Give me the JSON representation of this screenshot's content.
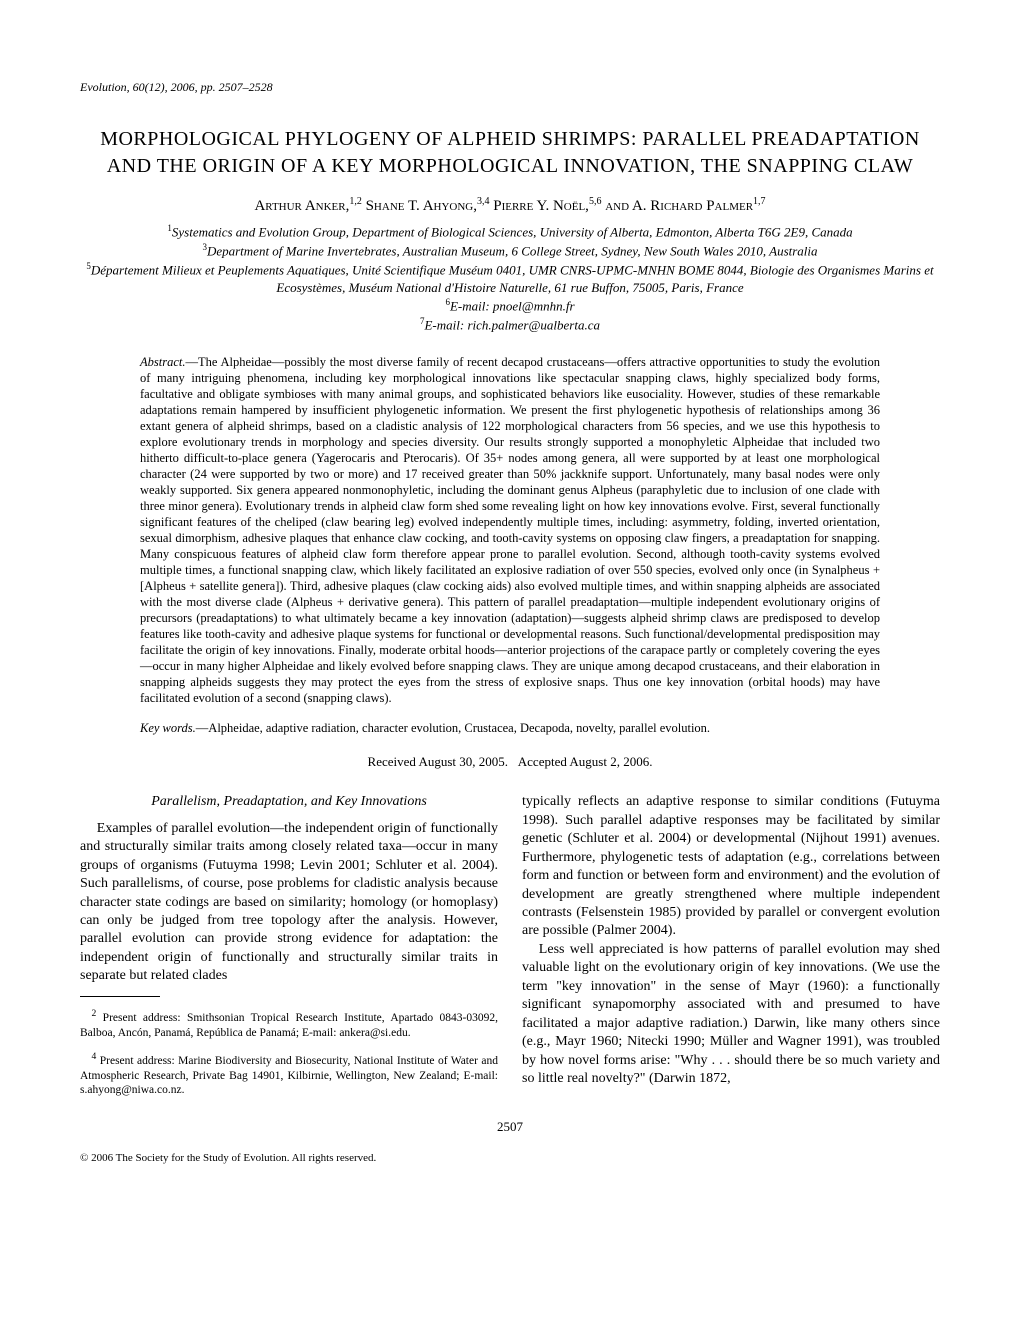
{
  "journal_header": "Evolution, 60(12), 2006, pp. 2507–2528",
  "title": "MORPHOLOGICAL PHYLOGENY OF ALPHEID SHRIMPS: PARALLEL PREADAPTATION AND THE ORIGIN OF A KEY MORPHOLOGICAL INNOVATION, THE SNAPPING CLAW",
  "authors_html": "Arthur Anker,<sup>1,2</sup> Shane T. Ahyong,<sup>3,4</sup> Pierre Y. Noël,<sup>5,6</sup> and A. Richard Palmer<sup>1,7</sup>",
  "affiliations": [
    {
      "sup": "1",
      "text": "Systematics and Evolution Group, Department of Biological Sciences, University of Alberta, Edmonton, Alberta T6G 2E9, Canada"
    },
    {
      "sup": "3",
      "text": "Department of Marine Invertebrates, Australian Museum, 6 College Street, Sydney, New South Wales 2010, Australia"
    },
    {
      "sup": "5",
      "text": "Département Milieux et Peuplements Aquatiques, Unité Scientifique Muséum 0401, UMR CNRS-UPMC-MNHN BOME 8044, Biologie des Organismes Marins et Ecosystèmes, Muséum National d'Histoire Naturelle, 61 rue Buffon, 75005, Paris, France"
    },
    {
      "sup": "6",
      "text": "E-mail: pnoel@mnhn.fr"
    },
    {
      "sup": "7",
      "text": "E-mail: rich.palmer@ualberta.ca"
    }
  ],
  "abstract_label": "Abstract.",
  "abstract": "—The Alpheidae—possibly the most diverse family of recent decapod crustaceans—offers attractive opportunities to study the evolution of many intriguing phenomena, including key morphological innovations like spectacular snapping claws, highly specialized body forms, facultative and obligate symbioses with many animal groups, and sophisticated behaviors like eusociality. However, studies of these remarkable adaptations remain hampered by insufficient phylogenetic information. We present the first phylogenetic hypothesis of relationships among 36 extant genera of alpheid shrimps, based on a cladistic analysis of 122 morphological characters from 56 species, and we use this hypothesis to explore evolutionary trends in morphology and species diversity. Our results strongly supported a monophyletic Alpheidae that included two hitherto difficult-to-place genera (Yagerocaris and Pterocaris). Of 35+ nodes among genera, all were supported by at least one morphological character (24 were supported by two or more) and 17 received greater than 50% jackknife support. Unfortunately, many basal nodes were only weakly supported. Six genera appeared nonmonophyletic, including the dominant genus Alpheus (paraphyletic due to inclusion of one clade with three minor genera). Evolutionary trends in alpheid claw form shed some revealing light on how key innovations evolve. First, several functionally significant features of the cheliped (claw bearing leg) evolved independently multiple times, including: asymmetry, folding, inverted orientation, sexual dimorphism, adhesive plaques that enhance claw cocking, and tooth-cavity systems on opposing claw fingers, a preadaptation for snapping. Many conspicuous features of alpheid claw form therefore appear prone to parallel evolution. Second, although tooth-cavity systems evolved multiple times, a functional snapping claw, which likely facilitated an explosive radiation of over 550 species, evolved only once (in Synalpheus + [Alpheus + satellite genera]). Third, adhesive plaques (claw cocking aids) also evolved multiple times, and within snapping alpheids are associated with the most diverse clade (Alpheus + derivative genera). This pattern of parallel preadaptation—multiple independent evolutionary origins of precursors (preadaptations) to what ultimately became a key innovation (adaptation)—suggests alpheid shrimp claws are predisposed to develop features like tooth-cavity and adhesive plaque systems for functional or developmental reasons. Such functional/developmental predisposition may facilitate the origin of key innovations. Finally, moderate orbital hoods—anterior projections of the carapace partly or completely covering the eyes—occur in many higher Alpheidae and likely evolved before snapping claws. They are unique among decapod crustaceans, and their elaboration in snapping alpheids suggests they may protect the eyes from the stress of explosive snaps. Thus one key innovation (orbital hoods) may have facilitated evolution of a second (snapping claws).",
  "keywords_label": "Key words.",
  "keywords": "—Alpheidae, adaptive radiation, character evolution, Crustacea, Decapoda, novelty, parallel evolution.",
  "received": "Received August 30, 2005.",
  "accepted": "Accepted August 2, 2006.",
  "section_heading": "Parallelism, Preadaptation, and Key Innovations",
  "body_p1": "Examples of parallel evolution—the independent origin of functionally and structurally similar traits among closely related taxa—occur in many groups of organisms (Futuyma 1998; Levin 2001; Schluter et al. 2004). Such parallelisms, of course, pose problems for cladistic analysis because character state codings are based on similarity; homology (or homoplasy) can only be judged from tree topology after the analysis. However, parallel evolution can provide strong evidence for adaptation: the independent origin of functionally and structurally similar traits in separate but related clades",
  "body_p2": "typically reflects an adaptive response to similar conditions (Futuyma 1998). Such parallel adaptive responses may be facilitated by similar genetic (Schluter et al. 2004) or developmental (Nijhout 1991) avenues. Furthermore, phylogenetic tests of adaptation (e.g., correlations between form and function or between form and environment) and the evolution of development are greatly strengthened where multiple independent contrasts (Felsenstein 1985) provided by parallel or convergent evolution are possible (Palmer 2004).",
  "body_p3": "Less well appreciated is how patterns of parallel evolution may shed valuable light on the evolutionary origin of key innovations. (We use the term \"key innovation\" in the sense of Mayr (1960): a functionally significant synapomorphy associated with and presumed to have facilitated a major adaptive radiation.) Darwin, like many others since (e.g., Mayr 1960; Nitecki 1990; Müller and Wagner 1991), was troubled by how novel forms arise: \"Why . . . should there be so much variety and so little real novelty?\" (Darwin 1872,",
  "footnote2_sup": "2",
  "footnote2": " Present address: Smithsonian Tropical Research Institute, Apartado 0843-03092, Balboa, Ancón, Panamá, República de Panamá; E-mail: ankera@si.edu.",
  "footnote4_sup": "4",
  "footnote4": " Present address: Marine Biodiversity and Biosecurity, National Institute of Water and Atmospheric Research, Private Bag 14901, Kilbirnie, Wellington, New Zealand; E-mail: s.ahyong@niwa.co.nz.",
  "page_number": "2507",
  "copyright": "© 2006 The Society for the Study of Evolution. All rights reserved."
}
